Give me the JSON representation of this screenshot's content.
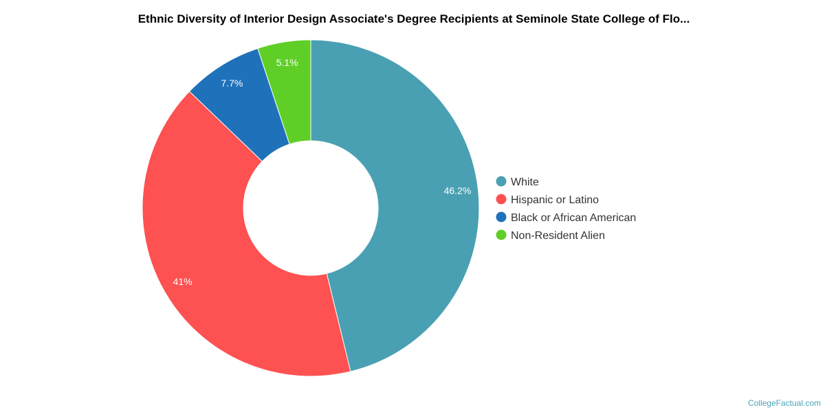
{
  "chart_data": {
    "type": "pie",
    "title": "Ethnic Diversity of Interior Design Associate's Degree Recipients at Seminole State College of Flo...",
    "categories": [
      "White",
      "Hispanic or Latino",
      "Black or African American",
      "Non-Resident Alien"
    ],
    "values": [
      46.2,
      41,
      7.7,
      5.1
    ],
    "data_labels": [
      "46.2%",
      "41%",
      "7.7%",
      "5.1%"
    ],
    "colors": [
      "#4aa0b3",
      "#fe5151",
      "#1f71ba",
      "#5fcf27"
    ],
    "donut": true,
    "legend_position": "right"
  },
  "footer": {
    "credit": "CollegeFactual.com"
  }
}
